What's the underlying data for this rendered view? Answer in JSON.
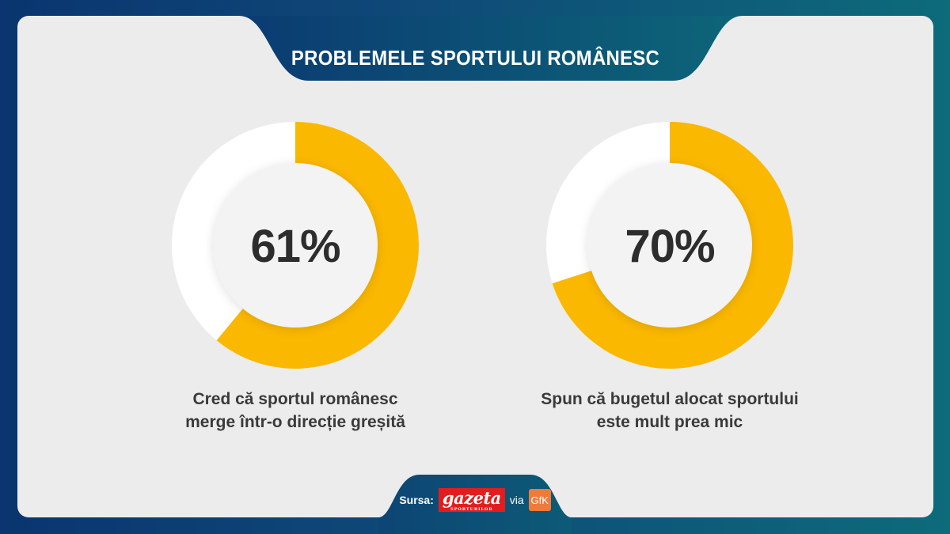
{
  "title": "PROBLEMELE SPORTULUI ROMÂNESC",
  "colors": {
    "accent": "#fbb800",
    "remainder": "#ffffff",
    "navy": "#0e4876"
  },
  "chart_data": [
    {
      "type": "pie",
      "label": "61%",
      "caption_line1": "Cred că sportul românesc",
      "caption_line2": "merge într-o direcție greșită",
      "values": [
        61,
        39
      ]
    },
    {
      "type": "pie",
      "label": "70%",
      "caption_line1": "Spun că bugetul alocat sportului",
      "caption_line2": "este mult prea mic",
      "values": [
        70,
        30
      ]
    }
  ],
  "footer": {
    "source_label": "Sursa:",
    "publisher_logo": "gazeta",
    "publisher_sub": "SPORTURILOR",
    "via": "via",
    "partner_logo": "GfK"
  }
}
